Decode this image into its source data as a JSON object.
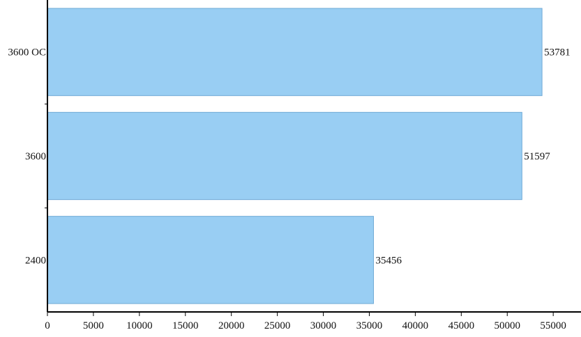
{
  "chart_data": {
    "type": "bar",
    "orientation": "horizontal",
    "categories": [
      "3600 OC",
      "3600",
      "2400"
    ],
    "values": [
      53781,
      51597,
      35456
    ],
    "value_labels": [
      "53781",
      "51597",
      "35456"
    ],
    "title": "",
    "xlabel": "",
    "ylabel": "",
    "xlim": [
      0,
      58000
    ],
    "x_ticks": [
      0,
      5000,
      10000,
      15000,
      20000,
      25000,
      30000,
      35000,
      40000,
      45000,
      50000,
      55000
    ],
    "x_tick_labels": [
      "0",
      "5000",
      "10000",
      "15000",
      "20000",
      "25000",
      "30000",
      "35000",
      "40000",
      "45000",
      "50000",
      "55000"
    ],
    "grid": false,
    "legend": "none",
    "colors": {
      "bar_fill": "#99cef3",
      "bar_stroke": "#6fa9d6",
      "axis": "#000000"
    }
  }
}
